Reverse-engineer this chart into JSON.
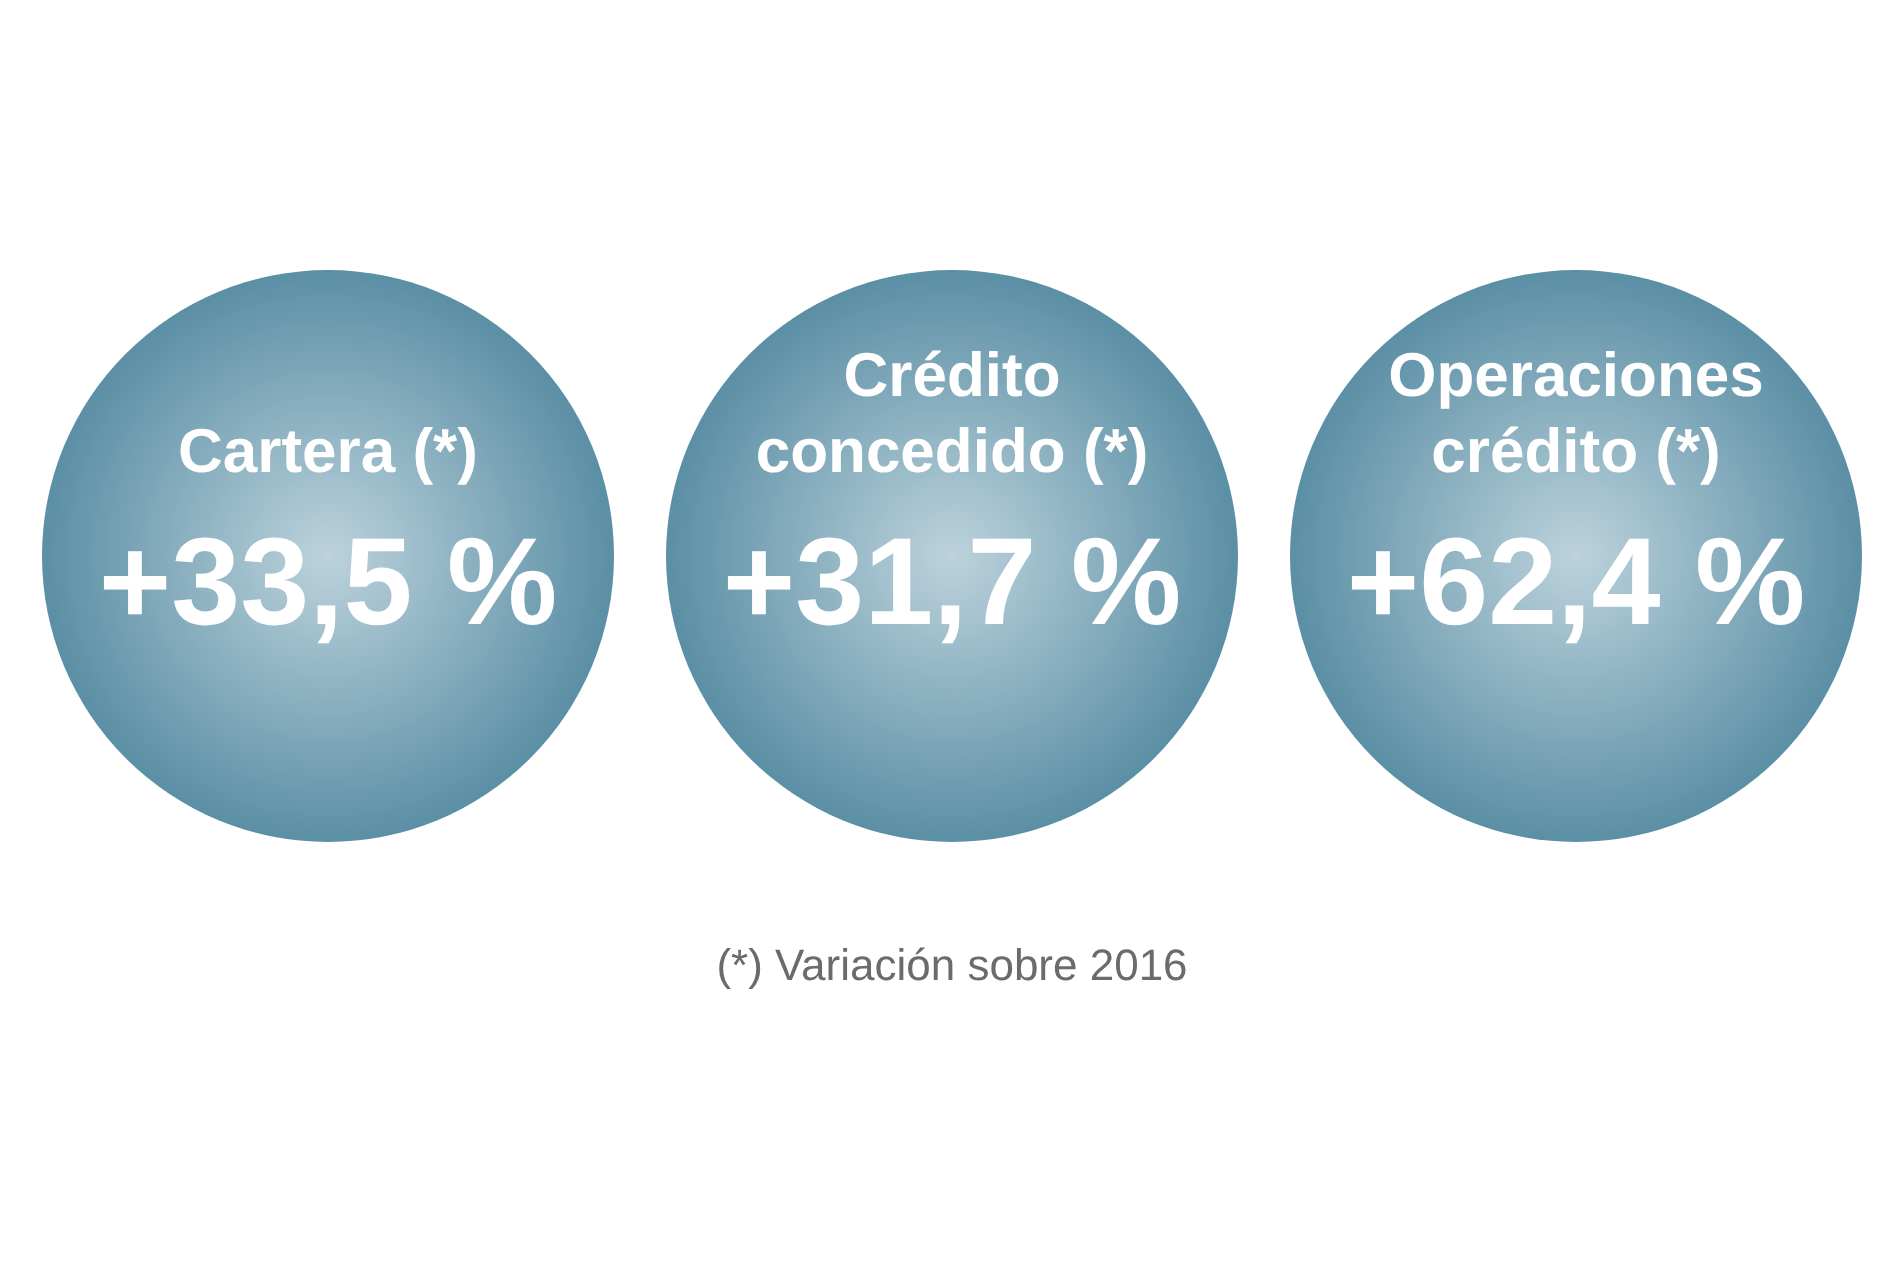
{
  "chart_data": {
    "type": "other",
    "categories": [
      "Cartera (*)",
      "Crédito concedido (*)",
      "Operaciones crédito (*)"
    ],
    "values": [
      33.5,
      31.7,
      62.4
    ],
    "value_labels": [
      "+33,5 %",
      "+31,7 %",
      "+62,4 %"
    ],
    "color": "#5b8fa5",
    "annotations": [
      "(*) Variación sobre 2016"
    ]
  }
}
